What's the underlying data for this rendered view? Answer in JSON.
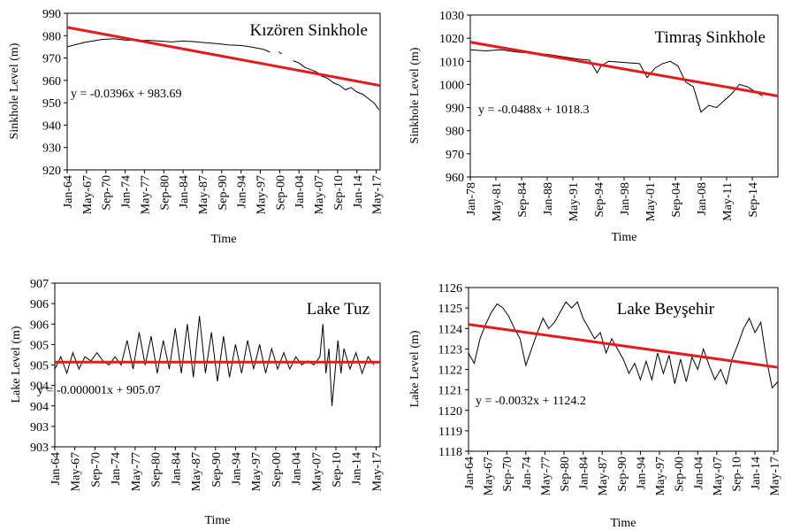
{
  "chart_data": [
    {
      "type": "line",
      "title": "Kızören Sinkhole",
      "xlabel": "Time",
      "ylabel": "Sinkhole Level (m)",
      "ylim": [
        920,
        990
      ],
      "yticks": [
        920,
        930,
        940,
        950,
        960,
        970,
        980,
        990
      ],
      "xlim": [
        1964.0,
        2018.0
      ],
      "xtick_labels": [
        "Jan-64",
        "May-67",
        "Sep-70",
        "Jan-74",
        "May-77",
        "Sep-80",
        "Jan-84",
        "May-87",
        "Sep-90",
        "Jan-94",
        "May-97",
        "Sep-00",
        "Jan-04",
        "May-07",
        "Sep-10",
        "Jan-14",
        "May-17"
      ],
      "xtick_years": [
        1964.0,
        1967.33,
        1970.67,
        1974.0,
        1977.33,
        1980.67,
        1984.0,
        1987.33,
        1990.67,
        1994.0,
        1997.33,
        2000.67,
        2004.0,
        2007.33,
        2010.67,
        2014.0,
        2017.33
      ],
      "annotation": "y = -0.0396x + 983.69",
      "series": [
        {
          "values": {
            "x": [
              1964.0,
              1967.0,
              1970.0,
              1972.0,
              1974.0,
              1976.0,
              1978.0,
              1980.0,
              1982.0,
              1984.0,
              1986.0,
              1988.0,
              1990.0,
              1992.0,
              1994.0,
              1996.0,
              1998.0,
              1999.0,
              2000.3,
              2000.5,
              2001.0,
              2002.0,
              2003.0,
              2004.0,
              2005.0,
              2006.0,
              2007.0,
              2008.0,
              2009.0,
              2010.0,
              2011.0,
              2012.0,
              2013.0,
              2014.0,
              2015.0,
              2016.0,
              2017.0,
              2017.8
            ],
            "y": [
              975.0,
              977.0,
              978.3,
              978.6,
              978.0,
              977.8,
              977.9,
              977.6,
              977.2,
              977.6,
              977.3,
              976.8,
              976.4,
              975.8,
              975.6,
              974.8,
              973.8,
              972.6,
              null,
              972.8,
              971.8,
              null,
              968.8,
              967.8,
              965.8,
              964.8,
              963.8,
              961.8,
              960.8,
              958.8,
              957.8,
              955.8,
              956.8,
              954.8,
              953.8,
              951.8,
              949.8,
              946.8
            ]
          }
        }
      ],
      "trendline": {
        "color": "#e41a1c",
        "x": [
          1964.0,
          2018.0
        ],
        "y": [
          983.7,
          957.7
        ]
      }
    },
    {
      "type": "line",
      "title": "Timraş Sinkhole",
      "xlabel": "Time",
      "ylabel": "Sinkhole Level (m)",
      "ylim": [
        960,
        1030
      ],
      "yticks": [
        960,
        970,
        980,
        990,
        1000,
        1010,
        1020,
        1030
      ],
      "xlim": [
        1978.0,
        2018.0
      ],
      "xtick_labels": [
        "Jan-78",
        "May-81",
        "Sep-84",
        "Jan-88",
        "May-91",
        "Sep-94",
        "Jan-98",
        "May-01",
        "Sep-04",
        "Jan-08",
        "May-11",
        "Sep-14"
      ],
      "xtick_years": [
        1978.0,
        1981.33,
        1984.67,
        1988.0,
        1991.33,
        1994.67,
        1998.0,
        2001.33,
        2004.67,
        2008.0,
        2011.33,
        2014.67
      ],
      "annotation": "y = -0.0488x + 1018.3",
      "series": [
        {
          "values": {
            "x": [
              1978.0,
              1980.0,
              1982.0,
              1984.0,
              1986.0,
              1988.0,
              1990.0,
              1992.0,
              1993.5,
              1994.5,
              1995.0,
              1996.0,
              1998.0,
              2000.0,
              2001.0,
              2002.0,
              2003.0,
              2004.0,
              2005.0,
              2006.0,
              2007.0,
              2008.0,
              2009.0,
              2010.0,
              2011.0,
              2012.0,
              2013.0,
              2014.0,
              2015.0,
              2016.0
            ],
            "y": [
              1015.0,
              1014.5,
              1015.0,
              1014.0,
              1013.5,
              1013.0,
              1012.0,
              1011.0,
              1010.5,
              1005.0,
              1008.0,
              1010.0,
              1009.5,
              1009.0,
              1003.0,
              1007.0,
              1009.0,
              1010.0,
              1008.0,
              1001.0,
              999.0,
              988.0,
              991.0,
              990.0,
              993.0,
              996.0,
              1000.0,
              999.0,
              997.0,
              995.0
            ]
          }
        }
      ],
      "trendline": {
        "color": "#e41a1c",
        "x": [
          1978.0,
          2018.0
        ],
        "y": [
          1018.3,
          995.0
        ]
      }
    },
    {
      "type": "line",
      "title": "Lake Tuz",
      "xlabel": "Time",
      "ylabel": "Lake Level (m)",
      "ylim": [
        903,
        907
      ],
      "ytick_labels": [
        "903",
        "903",
        "904",
        "904",
        "905",
        "905",
        "906",
        "906",
        "907"
      ],
      "xlim": [
        1964.0,
        2018.0
      ],
      "xtick_labels": [
        "Jan-64",
        "May-67",
        "Sep-70",
        "Jan-74",
        "May-77",
        "Sep-80",
        "Jan-84",
        "May-87",
        "Sep-90",
        "Jan-94",
        "May-97",
        "Sep-00",
        "Jan-04",
        "May-07",
        "Sep-10",
        "Jan-14",
        "May-17"
      ],
      "xtick_years": [
        1964.0,
        1967.33,
        1970.67,
        1974.0,
        1977.33,
        1980.67,
        1984.0,
        1987.33,
        1990.67,
        1994.0,
        1997.33,
        2000.67,
        2004.0,
        2007.33,
        2010.67,
        2014.0,
        2017.33
      ],
      "annotation": "y = -0.000001x + 905.07",
      "series": [
        {
          "values": {
            "x": [
              1964.0,
              1965.0,
              1966.0,
              1967.0,
              1968.0,
              1969.0,
              1970.0,
              1971.0,
              1972.0,
              1973.0,
              1974.0,
              1975.0,
              1976.0,
              1977.0,
              1978.0,
              1979.0,
              1980.0,
              1981.0,
              1982.0,
              1983.0,
              1984.0,
              1985.0,
              1986.0,
              1987.0,
              1988.0,
              1989.0,
              1990.0,
              1991.0,
              1992.0,
              1993.0,
              1994.0,
              1995.0,
              1996.0,
              1997.0,
              1998.0,
              1999.0,
              2000.0,
              2001.0,
              2002.0,
              2003.0,
              2004.0,
              2005.0,
              2006.0,
              2007.0,
              2008.0,
              2008.5,
              2009.0,
              2009.5,
              2010.0,
              2011.0,
              2011.5,
              2012.0,
              2013.0,
              2014.0,
              2015.0,
              2016.0,
              2017.0
            ],
            "y": [
              904.9,
              905.2,
              904.8,
              905.3,
              904.9,
              905.2,
              905.1,
              905.3,
              905.1,
              905.0,
              905.2,
              905.0,
              905.6,
              904.9,
              905.8,
              905.0,
              905.7,
              904.8,
              905.6,
              904.9,
              905.9,
              904.8,
              906.0,
              904.7,
              906.2,
              904.8,
              905.8,
              904.6,
              905.7,
              904.7,
              905.5,
              904.8,
              905.6,
              904.9,
              905.5,
              904.8,
              905.4,
              904.9,
              905.3,
              904.9,
              905.2,
              905.0,
              905.1,
              905.0,
              905.2,
              906.0,
              904.8,
              905.4,
              904.0,
              905.6,
              904.8,
              905.4,
              904.9,
              905.3,
              904.8,
              905.2,
              905.0
            ]
          }
        }
      ],
      "trendline": {
        "color": "#e41a1c",
        "x": [
          1964.0,
          2018.0
        ],
        "y": [
          905.07,
          905.07
        ]
      }
    },
    {
      "type": "line",
      "title": "Lake Beyşehir",
      "xlabel": "Time",
      "ylabel": "Lake Level (m)",
      "ylim": [
        1118,
        1126
      ],
      "yticks": [
        1118,
        1119,
        1120,
        1121,
        1122,
        1123,
        1124,
        1125,
        1126
      ],
      "xlim": [
        1964.0,
        2018.0
      ],
      "xtick_labels": [
        "Jan-64",
        "May-67",
        "Sep-70",
        "Jan-74",
        "May-77",
        "Sep-80",
        "Jan-84",
        "May-87",
        "Sep-90",
        "Jan-94",
        "May-97",
        "Sep-00",
        "Jan-04",
        "May-07",
        "Sep-10",
        "Jan-14",
        "May-17"
      ],
      "xtick_years": [
        1964.0,
        1967.33,
        1970.67,
        1974.0,
        1977.33,
        1980.67,
        1984.0,
        1987.33,
        1990.67,
        1994.0,
        1997.33,
        2000.67,
        2004.0,
        2007.33,
        2010.67,
        2014.0,
        2017.33
      ],
      "annotation": "y = -0.0032x + 1124.2",
      "series": [
        {
          "values": {
            "x": [
              1964.0,
              1965.0,
              1966.0,
              1967.0,
              1968.0,
              1969.0,
              1970.0,
              1971.0,
              1972.0,
              1973.0,
              1974.0,
              1975.0,
              1976.0,
              1977.0,
              1978.0,
              1979.0,
              1980.0,
              1981.0,
              1982.0,
              1983.0,
              1984.0,
              1985.0,
              1986.0,
              1987.0,
              1988.0,
              1989.0,
              1990.0,
              1991.0,
              1992.0,
              1993.0,
              1994.0,
              1995.0,
              1996.0,
              1997.0,
              1998.0,
              1999.0,
              2000.0,
              2001.0,
              2002.0,
              2003.0,
              2004.0,
              2005.0,
              2006.0,
              2007.0,
              2008.0,
              2009.0,
              2010.0,
              2011.0,
              2012.0,
              2013.0,
              2014.0,
              2015.0,
              2016.0,
              2017.0,
              2018.0
            ],
            "y": [
              1122.8,
              1122.3,
              1123.5,
              1124.2,
              1124.8,
              1125.2,
              1125.0,
              1124.6,
              1124.0,
              1123.5,
              1122.2,
              1123.0,
              1123.8,
              1124.5,
              1124.0,
              1124.3,
              1124.8,
              1125.3,
              1125.0,
              1125.3,
              1124.5,
              1124.0,
              1123.5,
              1123.8,
              1122.8,
              1123.5,
              1123.0,
              1122.5,
              1121.8,
              1122.3,
              1121.5,
              1122.4,
              1121.5,
              1122.8,
              1121.8,
              1122.7,
              1121.3,
              1122.5,
              1121.4,
              1122.6,
              1122.0,
              1123.0,
              1122.2,
              1121.5,
              1122.0,
              1121.3,
              1122.5,
              1123.2,
              1124.0,
              1124.5,
              1123.8,
              1124.3,
              1122.5,
              1121.1,
              1121.4
            ]
          }
        }
      ],
      "trendline": {
        "color": "#e41a1c",
        "x": [
          1964.0,
          2018.0
        ],
        "y": [
          1124.2,
          1122.1
        ]
      }
    }
  ]
}
